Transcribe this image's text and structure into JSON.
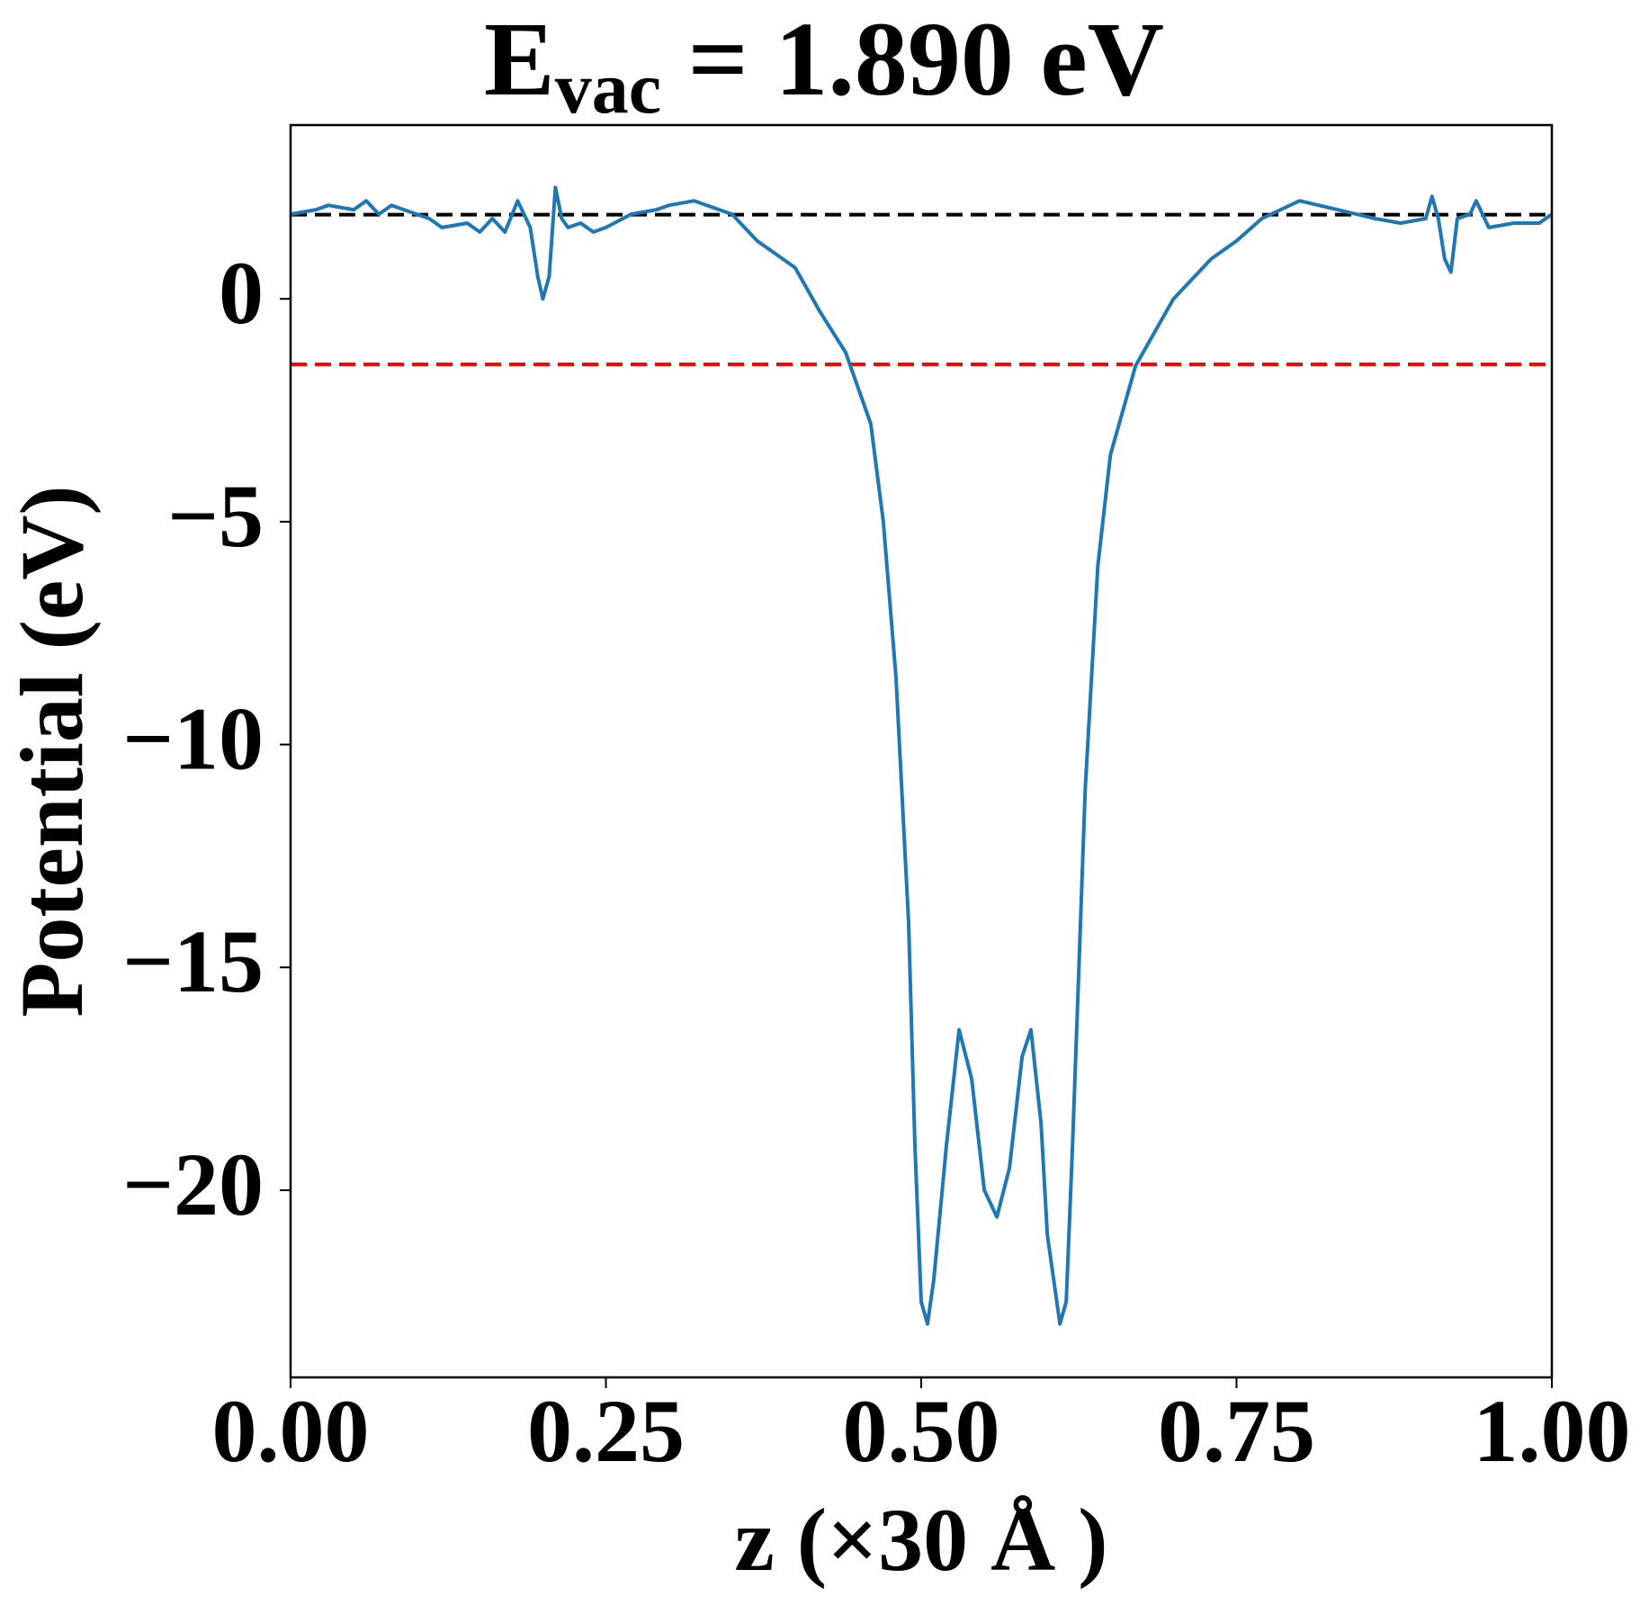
{
  "chart_data": {
    "type": "line",
    "title": [
      "E",
      "vac",
      " = 1.890 eV"
    ],
    "x_label": "z (×30 Å )",
    "y_label": "Potential (eV)",
    "xlim": [
      0,
      1
    ],
    "ylim": [
      -24.2,
      3.9
    ],
    "xticks": [
      {
        "value": 0,
        "label": "0.00"
      },
      {
        "value": 0.25,
        "label": "0.25"
      },
      {
        "value": 0.5,
        "label": "0.50"
      },
      {
        "value": 0.75,
        "label": "0.75"
      },
      {
        "value": 1,
        "label": "1.00"
      }
    ],
    "yticks": [
      0,
      {
        "value": -5,
        "label": "−5"
      },
      {
        "value": -10,
        "label": "−10"
      },
      {
        "value": -15,
        "label": "−15"
      },
      {
        "value": -20,
        "label": "−20"
      }
    ],
    "grid": false,
    "hlines": [
      {
        "value": 1.89,
        "color": "#000000"
      },
      {
        "value": -1.47,
        "color": "#ff0000"
      }
    ],
    "series": [
      {
        "color": "#1f77b4",
        "x": [
          0,
          0.02,
          0.03,
          0.05,
          0.06,
          0.07,
          0.08,
          0.1,
          0.11,
          0.12,
          0.14,
          0.15,
          0.16,
          0.17,
          0.18,
          0.19,
          0.196,
          0.2,
          0.205,
          0.21,
          0.215,
          0.22,
          0.23,
          0.24,
          0.25,
          0.27,
          0.29,
          0.3,
          0.32,
          0.35,
          0.37,
          0.4,
          0.42,
          0.44,
          0.46,
          0.47,
          0.48,
          0.49,
          0.495,
          0.5,
          0.505,
          0.51,
          0.52,
          0.53,
          0.54,
          0.55,
          0.56,
          0.57,
          0.58,
          0.587,
          0.595,
          0.6,
          0.61,
          0.615,
          0.62,
          0.625,
          0.63,
          0.64,
          0.65,
          0.67,
          0.7,
          0.73,
          0.75,
          0.77,
          0.8,
          0.83,
          0.86,
          0.88,
          0.9,
          0.905,
          0.91,
          0.915,
          0.92,
          0.925,
          0.935,
          0.94,
          0.95,
          0.97,
          0.99,
          1.0
        ],
        "values": [
          1.9,
          2.0,
          2.1,
          2.0,
          2.2,
          1.9,
          2.1,
          1.9,
          1.8,
          1.6,
          1.7,
          1.5,
          1.8,
          1.5,
          2.2,
          1.6,
          0.5,
          0.0,
          0.5,
          2.5,
          1.8,
          1.6,
          1.7,
          1.5,
          1.6,
          1.9,
          2.0,
          2.1,
          2.2,
          1.9,
          1.3,
          0.7,
          -0.3,
          -1.2,
          -2.8,
          -5.0,
          -8.5,
          -14.0,
          -19.0,
          -22.5,
          -23.0,
          -22.0,
          -19.0,
          -16.4,
          -17.5,
          -20.0,
          -20.6,
          -19.5,
          -17.0,
          -16.4,
          -18.5,
          -21.0,
          -23.0,
          -22.5,
          -19.0,
          -15.0,
          -11.0,
          -6.0,
          -3.5,
          -1.5,
          0.0,
          0.9,
          1.3,
          1.8,
          2.2,
          2.0,
          1.8,
          1.7,
          1.8,
          2.3,
          1.8,
          0.9,
          0.6,
          1.8,
          1.9,
          2.2,
          1.6,
          1.7,
          1.7,
          1.9
        ]
      }
    ]
  }
}
